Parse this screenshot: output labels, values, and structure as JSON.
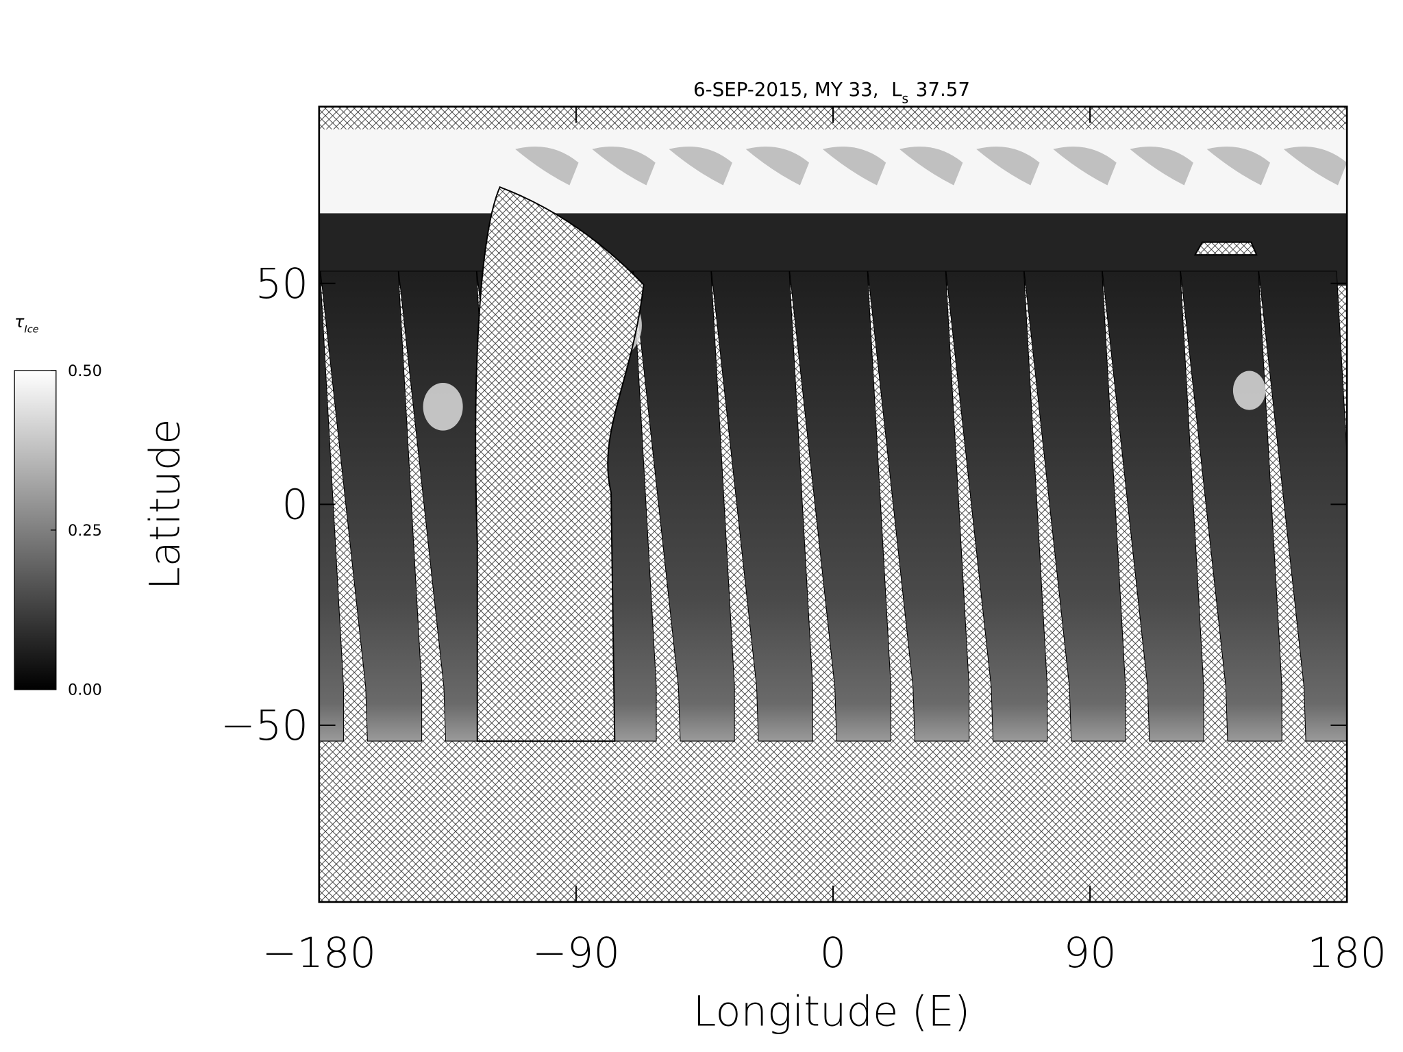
{
  "chart_data": {
    "type": "map",
    "title": {
      "text": "6-SEP-2015, MY 33,",
      "ls": "L",
      "ls_sub": "s",
      "ls_value": 37.57
    },
    "x_label": "Longitude (E)",
    "y_label": "Latitude",
    "xlim": [
      -180,
      180
    ],
    "xticks": [
      -180,
      -90,
      0,
      90,
      180
    ],
    "ylim": [
      -90,
      90
    ],
    "yticks": [
      -50,
      0,
      50
    ],
    "colorbar": {
      "label": "τ",
      "label_sub": "Ice",
      "lim": [
        0,
        0.5
      ],
      "ticks": [
        {
          "value": 0,
          "label": "0.00"
        },
        {
          "value": 0.25,
          "label": "0.25"
        },
        {
          "value": 0.5,
          "label": "0.50"
        }
      ]
    }
  }
}
